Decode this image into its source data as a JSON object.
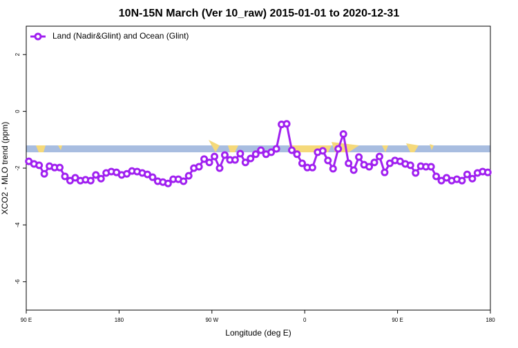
{
  "chart_data": {
    "type": "line",
    "title": "10N-15N March (Ver 10_raw)   2015-01-01 to 2020-12-31",
    "x_label": "Longitude (deg E)",
    "y_label": "XCO2 - MLO trend (ppm)",
    "xlim": [
      90,
      540
    ],
    "xticks": [
      {
        "value": 90,
        "label": "90 E"
      },
      180,
      {
        "value": 270,
        "label": "90 W"
      },
      {
        "value": 360,
        "label": "0"
      },
      {
        "value": 450,
        "label": "90 E"
      },
      {
        "value": 540,
        "label": "180"
      }
    ],
    "ylim": [
      -7,
      3
    ],
    "yticks": [
      2,
      0,
      -2,
      -4,
      -6
    ],
    "legend": "top-left",
    "x": [
      92.5,
      97.5,
      102.5,
      107.5,
      112.5,
      117.5,
      122.5,
      127.5,
      132.5,
      137.5,
      142.5,
      147.5,
      152.5,
      157.5,
      162.5,
      167.5,
      172.5,
      177.5,
      182.5,
      187.5,
      192.5,
      197.5,
      202.5,
      207.5,
      212.5,
      217.5,
      222.5,
      227.5,
      232.5,
      237.5,
      242.5,
      247.5,
      252.5,
      257.5,
      262.5,
      267.5,
      272.5,
      277.5,
      282.5,
      287.5,
      292.5,
      297.5,
      302.5,
      307.5,
      312.5,
      317.5,
      322.5,
      327.5,
      332.5,
      337.5,
      342.5,
      347.5,
      352.5,
      357.5,
      362.5,
      367.5,
      372.5,
      377.5,
      382.5,
      387.5,
      392.5,
      397.5,
      402.5,
      407.5,
      412.5,
      417.5,
      422.5,
      427.5,
      432.5,
      437.5,
      442.5,
      447.5,
      452.5,
      457.5,
      462.5,
      467.5,
      472.5,
      477.5,
      482.5,
      487.5,
      492.5,
      497.5,
      502.5,
      507.5,
      512.5,
      517.5,
      522.5,
      527.5,
      532.5,
      537.5
    ],
    "series": [
      {
        "name": "Land (Nadir&Glint) and Ocean (Glint)",
        "color": "#a020f0",
        "values": [
          -1.76,
          -1.85,
          -1.9,
          -2.2,
          -1.93,
          -1.98,
          -1.98,
          -2.29,
          -2.44,
          -2.34,
          -2.44,
          -2.41,
          -2.44,
          -2.24,
          -2.37,
          -2.17,
          -2.12,
          -2.15,
          -2.24,
          -2.2,
          -2.1,
          -2.12,
          -2.17,
          -2.22,
          -2.32,
          -2.46,
          -2.49,
          -2.54,
          -2.39,
          -2.39,
          -2.46,
          -2.27,
          -2.0,
          -1.95,
          -1.68,
          -1.8,
          -1.59,
          -2.0,
          -1.54,
          -1.71,
          -1.71,
          -1.49,
          -1.8,
          -1.66,
          -1.51,
          -1.37,
          -1.51,
          -1.44,
          -1.32,
          -0.46,
          -0.44,
          -1.37,
          -1.51,
          -1.83,
          -1.98,
          -1.98,
          -1.44,
          -1.39,
          -1.73,
          -2.02,
          -1.32,
          -0.8,
          -1.83,
          -2.07,
          -1.61,
          -1.88,
          -1.95,
          -1.8,
          -1.59,
          -2.15,
          -1.83,
          -1.73,
          -1.76,
          -1.85,
          -1.9,
          -2.17,
          -1.93,
          -1.95,
          -1.95,
          -2.29,
          -2.44,
          -2.34,
          -2.44,
          -2.39,
          -2.44,
          -2.22,
          -2.37,
          -2.17,
          -2.12,
          -2.15
        ]
      }
    ]
  }
}
